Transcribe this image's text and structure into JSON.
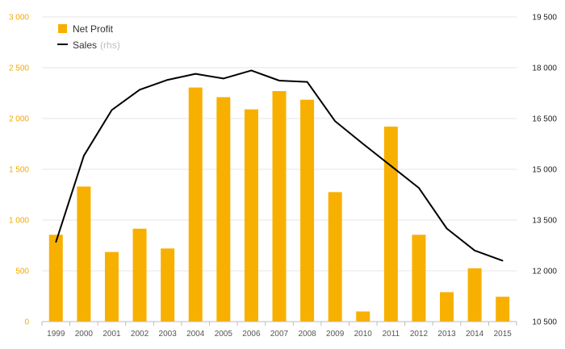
{
  "chart_data": {
    "type": "bar",
    "categories": [
      "1999",
      "2000",
      "2001",
      "2002",
      "2003",
      "2004",
      "2005",
      "2006",
      "2007",
      "2008",
      "2009",
      "2010",
      "2011",
      "2012",
      "2013",
      "2014",
      "2015"
    ],
    "series": [
      {
        "name": "Net Profit",
        "type": "bar",
        "axis": "left",
        "color": "#f8b000",
        "values": [
          855,
          1330,
          685,
          915,
          720,
          2305,
          2210,
          2090,
          2270,
          2185,
          1275,
          100,
          1920,
          855,
          290,
          525,
          245
        ]
      },
      {
        "name": "Sales",
        "name_suffix": "(rhs)",
        "type": "line",
        "axis": "right",
        "color": "#000000",
        "values": [
          12850,
          15400,
          16750,
          17350,
          17640,
          17820,
          17680,
          17920,
          17620,
          17580,
          16420,
          15750,
          15100,
          14450,
          13250,
          12600,
          12300
        ]
      }
    ],
    "left_axis": {
      "ylim": [
        0,
        3000
      ],
      "ticks": [
        0,
        500,
        1000,
        1500,
        2000,
        2500,
        3000
      ],
      "tick_labels": [
        "0",
        "500",
        "1 000",
        "1 500",
        "2 000",
        "2 500",
        "3 000"
      ],
      "color": "#f2a900"
    },
    "right_axis": {
      "ylim": [
        10500,
        19500
      ],
      "ticks": [
        10500,
        12000,
        13500,
        15000,
        16500,
        18000,
        19500
      ],
      "tick_labels": [
        "10 500",
        "12 000",
        "13 500",
        "15 000",
        "16 500",
        "18 000",
        "19 500"
      ],
      "color": "#222222"
    },
    "grid": true,
    "legend_position": "top-left"
  }
}
